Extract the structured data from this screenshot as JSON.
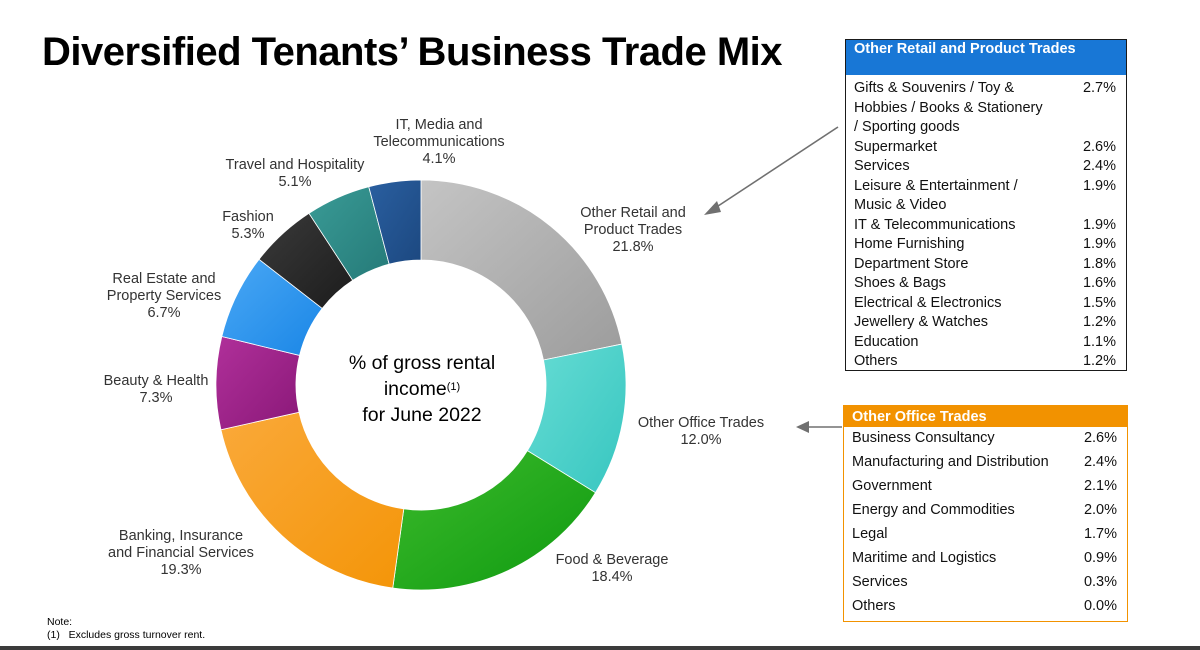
{
  "title": "Diversified Tenants’ Business Trade Mix",
  "center": {
    "line1": "% of gross rental",
    "line2": "income",
    "superscript": "(1)",
    "line3": "for June 2022"
  },
  "chart_data": {
    "type": "pie",
    "style": "donut",
    "start": "top, clockwise",
    "slices": [
      {
        "label": "Other Retail and Product Trades",
        "value": 21.8,
        "pct": "21.8%",
        "color": "#9c9c9c",
        "grad": "#c4c4c4"
      },
      {
        "label": "Other Office Trades",
        "value": 12.0,
        "pct": "12.0%",
        "color": "#37c6c0",
        "grad": "#66dcd4"
      },
      {
        "label": "Food & Beverage",
        "value": 18.4,
        "pct": "18.4%",
        "color": "#0e9a10",
        "grad": "#3dba2c"
      },
      {
        "label": "Banking, Insurance and Financial Services",
        "value": 19.3,
        "pct": "19.3%",
        "color": "#f49508",
        "grad": "#faa93a"
      },
      {
        "label": "Beauty & Health",
        "value": 7.3,
        "pct": "7.3%",
        "color": "#8a1878",
        "grad": "#b0309a"
      },
      {
        "label": "Real Estate and Property Services",
        "value": 6.7,
        "pct": "6.7%",
        "color": "#1a86e6",
        "grad": "#4aa8f5"
      },
      {
        "label": "Fashion",
        "value": 5.3,
        "pct": "5.3%",
        "color": "#1c1c1c",
        "grad": "#3a3a3a"
      },
      {
        "label": "Travel and Hospitality",
        "value": 5.1,
        "pct": "5.1%",
        "color": "#257a78",
        "grad": "#3a9b96"
      },
      {
        "label": "IT, Media and Telecommunications",
        "value": 4.1,
        "pct": "4.1%",
        "color": "#1c4880",
        "grad": "#2a5fa0"
      }
    ]
  },
  "labels": [
    {
      "name": "Other Retail and\nProduct Trades",
      "pct": "21.8%"
    },
    {
      "name": "Other Office Trades",
      "pct": "12.0%"
    },
    {
      "name": "Food & Beverage",
      "pct": "18.4%"
    },
    {
      "name": "Banking, Insurance\nand Financial Services",
      "pct": "19.3%"
    },
    {
      "name": "Beauty & Health",
      "pct": "7.3%"
    },
    {
      "name": "Real Estate and\nProperty Services",
      "pct": "6.7%"
    },
    {
      "name": "Fashion",
      "pct": "5.3%"
    },
    {
      "name": "Travel and Hospitality",
      "pct": "5.1%"
    },
    {
      "name": "IT, Media and\nTelecommunications",
      "pct": "4.1%"
    }
  ],
  "retail_box": {
    "header": "Other Retail and Product Trades",
    "header_color": "#1877d6",
    "rows": [
      {
        "name": "Gifts & Souvenirs / Toy &\nHobbies / Books & Stationery\n/ Sporting goods",
        "value": "2.7%"
      },
      {
        "name": "Supermarket",
        "value": "2.6%"
      },
      {
        "name": "Services",
        "value": "2.4%"
      },
      {
        "name": "Leisure & Entertainment /\nMusic & Video",
        "value": "1.9%"
      },
      {
        "name": "IT & Telecommunications",
        "value": "1.9%"
      },
      {
        "name": "Home Furnishing",
        "value": "1.9%"
      },
      {
        "name": "Department Store",
        "value": "1.8%"
      },
      {
        "name": "Shoes & Bags",
        "value": "1.6%"
      },
      {
        "name": "Electrical & Electronics",
        "value": "1.5%"
      },
      {
        "name": "Jewellery & Watches",
        "value": "1.2%"
      },
      {
        "name": "Education",
        "value": "1.1%"
      },
      {
        "name": "Others",
        "value": "1.2%"
      }
    ]
  },
  "office_box": {
    "header": "Other Office Trades",
    "header_color": "#f29200",
    "rows": [
      {
        "name": "Business Consultancy",
        "value": "2.6%"
      },
      {
        "name": "Manufacturing and Distribution",
        "value": "2.4%"
      },
      {
        "name": "Government",
        "value": "2.1%"
      },
      {
        "name": "Energy and Commodities",
        "value": "2.0%"
      },
      {
        "name": "Legal",
        "value": "1.7%"
      },
      {
        "name": "Maritime and Logistics",
        "value": "0.9%"
      },
      {
        "name": "Services",
        "value": "0.3%"
      },
      {
        "name": "Others",
        "value": "0.0%"
      }
    ]
  },
  "note": {
    "heading": "Note:",
    "line1": "(1)   Excludes gross turnover rent."
  }
}
